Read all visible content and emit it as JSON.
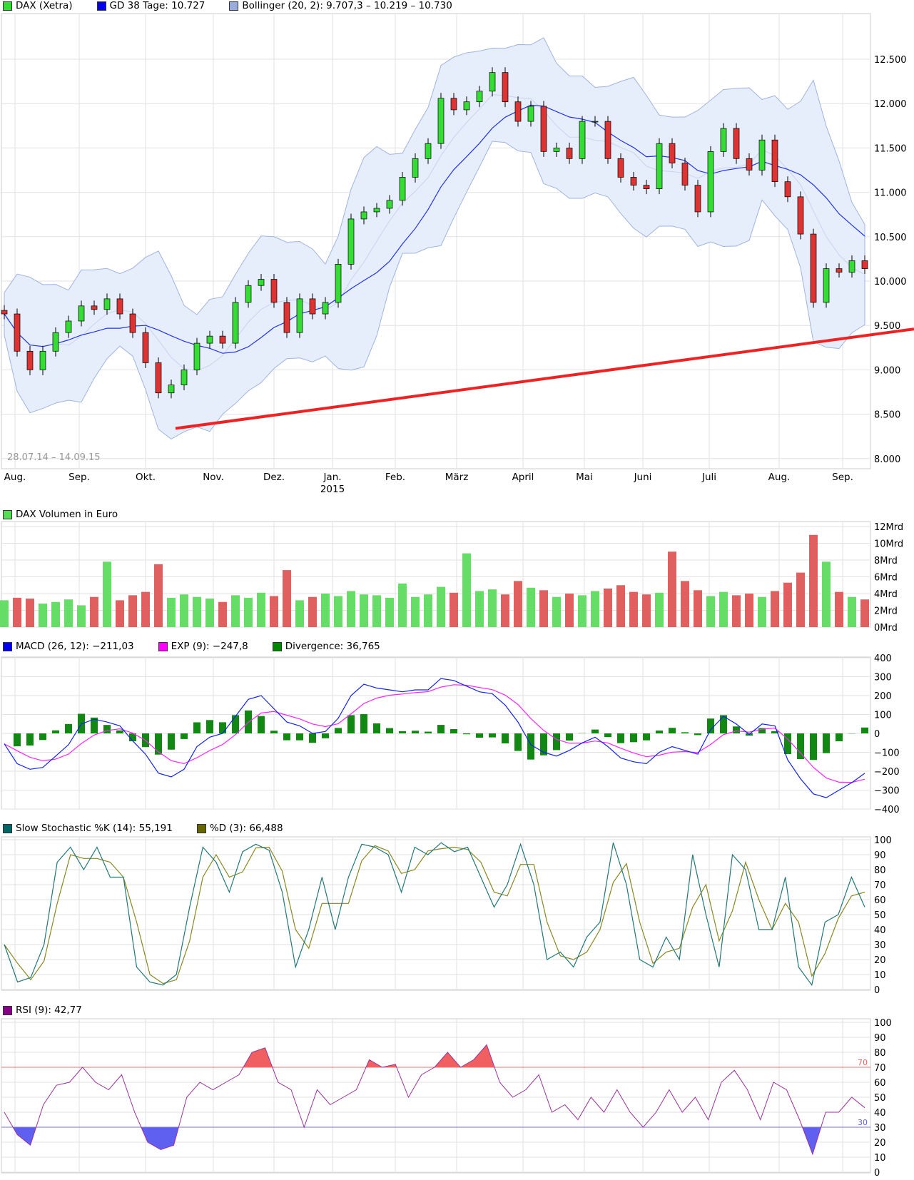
{
  "legends": {
    "main": [
      {
        "label": "DAX (Xetra)",
        "color": "#33dd33"
      },
      {
        "label": "GD 38 Tage: 10.727",
        "color": "#0000ee"
      },
      {
        "label": "Bollinger (20, 2): 9.707,3 – 10.219 – 10.730",
        "color": "#99aadd"
      }
    ],
    "volume": [
      {
        "label": "DAX Volumen in Euro",
        "color": "#55dd55"
      }
    ],
    "macd": [
      {
        "label": "MACD (26, 12): −211,03",
        "color": "#0000ee"
      },
      {
        "label": "EXP (9): −247,8",
        "color": "#ff00ff"
      },
      {
        "label": "Divergence: 36,765",
        "color": "#008800"
      }
    ],
    "stoch": [
      {
        "label": "Slow Stochastic %K (14): 55,191",
        "color": "#006666"
      },
      {
        "label": "%D (3): 66,488",
        "color": "#666600"
      }
    ],
    "rsi": [
      {
        "label": "RSI (9): 42,77",
        "color": "#880088"
      }
    ]
  },
  "chart_data": [
    {
      "type": "candlestick",
      "title": "DAX (Xetra)",
      "date_range": "28.07.14 – 14.09.15",
      "months": [
        "Aug.",
        "Sep.",
        "Okt.",
        "Nov.",
        "Dez.",
        "Jan.",
        "Feb.",
        "März",
        "April",
        "Mai",
        "Juni",
        "Juli",
        "Aug.",
        "Sep."
      ],
      "year_label": "2015",
      "yticks": [
        "12.500",
        "12.000",
        "11.500",
        "11.000",
        "10.500",
        "10.000",
        "9.500",
        "9.000",
        "8.500",
        "8.000"
      ],
      "ylim": [
        8000,
        12500
      ],
      "closes": [
        9630,
        9210,
        9000,
        9210,
        9420,
        9550,
        9720,
        9680,
        9800,
        9630,
        9420,
        9080,
        8740,
        8830,
        9000,
        9300,
        9380,
        9300,
        9760,
        9950,
        10020,
        9760,
        9420,
        9800,
        9630,
        9760,
        10190,
        10700,
        10780,
        10820,
        10910,
        11170,
        11380,
        11550,
        12060,
        11930,
        12020,
        12140,
        12350,
        12020,
        11800,
        11970,
        11460,
        11500,
        11380,
        11800,
        11800,
        11380,
        11170,
        11080,
        11040,
        11550,
        11330,
        11080,
        10780,
        11460,
        11720,
        11380,
        11250,
        11590,
        11120,
        10950,
        10530,
        9760,
        10140,
        10100,
        10230,
        10140
      ],
      "gd38_last": 10727,
      "bollinger": {
        "lower": 9707.3,
        "middle": 10219,
        "upper": 10730
      },
      "trendline": {
        "start": 8340,
        "end": 9460,
        "color": "#ee2222"
      }
    },
    {
      "type": "bar",
      "title": "DAX Volumen in Euro",
      "yticks": [
        "12Mrd",
        "10Mrd",
        "8Mrd",
        "6Mrd",
        "4Mrd",
        "2Mrd",
        "0Mrd"
      ],
      "ylim": [
        0,
        12
      ],
      "values": [
        3.2,
        3.5,
        3.4,
        2.8,
        3.0,
        3.3,
        2.6,
        3.6,
        7.8,
        3.2,
        3.8,
        4.2,
        7.5,
        3.5,
        3.9,
        3.6,
        3.4,
        3.0,
        3.8,
        3.5,
        4.1,
        3.7,
        6.8,
        3.2,
        3.6,
        4.0,
        3.7,
        4.3,
        3.9,
        3.8,
        3.5,
        5.2,
        3.6,
        3.9,
        4.8,
        4.1,
        8.8,
        4.3,
        4.5,
        3.9,
        5.5,
        4.7,
        4.4,
        3.6,
        4.0,
        3.8,
        4.3,
        4.6,
        5.0,
        4.2,
        3.9,
        4.1,
        9.0,
        5.5,
        4.4,
        3.7,
        4.2,
        3.8,
        4.0,
        3.6,
        4.3,
        5.3,
        6.5,
        11.0,
        7.8,
        4.2,
        3.6,
        3.3
      ]
    },
    {
      "type": "line",
      "title": "MACD",
      "yticks": [
        "400",
        "300",
        "200",
        "100",
        "0",
        "−100",
        "−200",
        "−300",
        "−400"
      ],
      "ylim": [
        -400,
        400
      ],
      "macd": [
        -55,
        -160,
        -190,
        -180,
        -120,
        -60,
        50,
        75,
        60,
        40,
        -40,
        -110,
        -210,
        -230,
        -190,
        -70,
        -20,
        0,
        90,
        180,
        200,
        130,
        60,
        40,
        0,
        10,
        80,
        200,
        260,
        240,
        230,
        220,
        230,
        230,
        290,
        280,
        250,
        220,
        210,
        150,
        60,
        -60,
        -100,
        -120,
        -90,
        -50,
        -20,
        -70,
        -130,
        -150,
        -160,
        -100,
        -70,
        -90,
        -110,
        20,
        90,
        50,
        -5,
        50,
        40,
        -140,
        -240,
        -320,
        -340,
        -300,
        -260,
        -211
      ]
    },
    {
      "type": "line",
      "title": "Slow Stochastic",
      "yticks": [
        "100",
        "90",
        "80",
        "70",
        "60",
        "50",
        "40",
        "30",
        "20",
        "10",
        "0"
      ],
      "ylim": [
        0,
        100
      ],
      "k": [
        30,
        5,
        8,
        30,
        85,
        95,
        80,
        95,
        75,
        75,
        15,
        5,
        3,
        10,
        55,
        95,
        85,
        65,
        92,
        97,
        93,
        65,
        15,
        40,
        75,
        40,
        75,
        97,
        95,
        90,
        65,
        95,
        90,
        98,
        92,
        95,
        75,
        55,
        70,
        97,
        70,
        20,
        25,
        15,
        35,
        45,
        98,
        70,
        20,
        15,
        35,
        20,
        90,
        50,
        15,
        90,
        80,
        40,
        40,
        75,
        15,
        3,
        45,
        50,
        75,
        55
      ]
    },
    {
      "type": "line",
      "title": "RSI (9)",
      "yticks": [
        "100",
        "90",
        "80",
        "70",
        "60",
        "50",
        "40",
        "30",
        "20",
        "10",
        "0"
      ],
      "ylim": [
        0,
        100
      ],
      "levels": {
        "upper": "70",
        "lower": "30"
      },
      "values": [
        40,
        25,
        18,
        45,
        58,
        60,
        70,
        60,
        55,
        65,
        40,
        20,
        15,
        18,
        50,
        60,
        55,
        60,
        65,
        80,
        83,
        60,
        55,
        30,
        55,
        45,
        50,
        55,
        75,
        70,
        72,
        50,
        65,
        70,
        80,
        70,
        75,
        85,
        60,
        50,
        55,
        65,
        40,
        45,
        35,
        50,
        40,
        55,
        40,
        30,
        40,
        55,
        40,
        50,
        35,
        60,
        68,
        55,
        35,
        60,
        55,
        35,
        12,
        40,
        40,
        50,
        43
      ]
    }
  ]
}
